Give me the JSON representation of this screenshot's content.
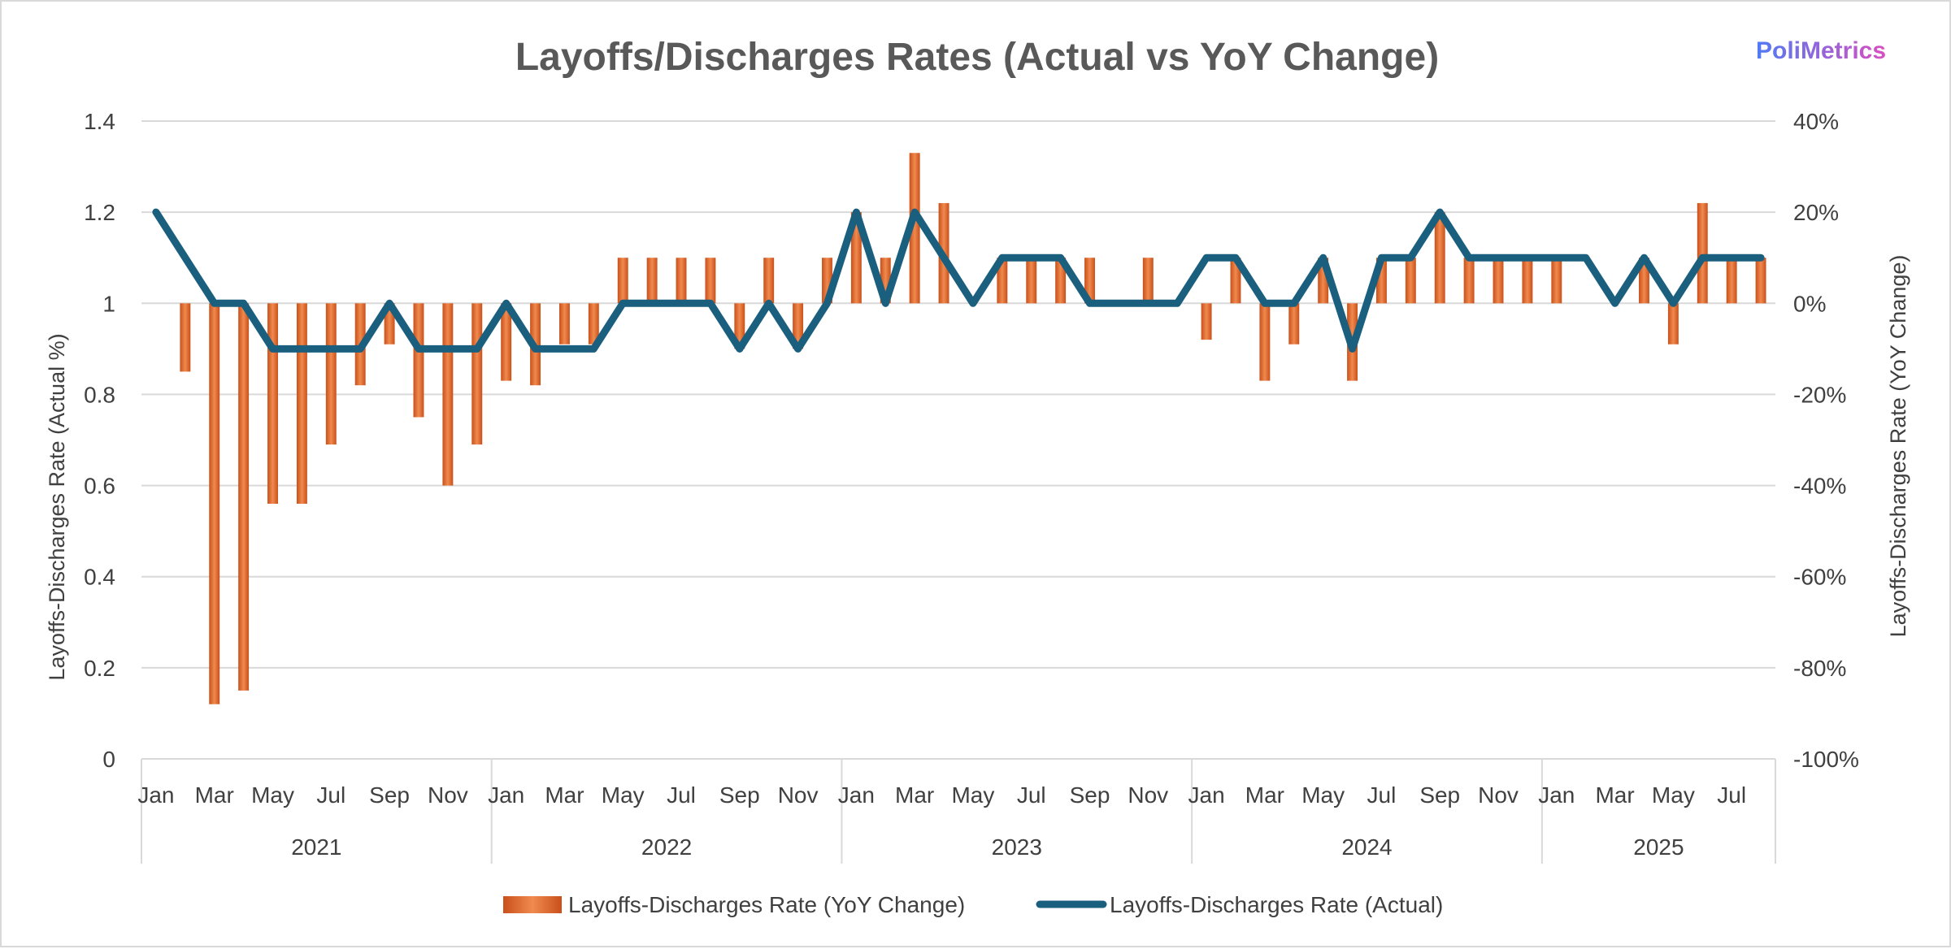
{
  "brand": {
    "label": "PoliMetrics",
    "color_start": "#4f7bf5",
    "color_end": "#d94fc2"
  },
  "chart_data": {
    "type": "bar+line",
    "title": "Layoffs/Discharges Rates (Actual vs YoY Change)",
    "y_left_label": "Layoffs-Discharges Rate (Actual %)",
    "y_right_label": "Layoffs-Discharges Rate (YoY Change)",
    "y_left_ticks": [
      "0",
      "0.2",
      "0.4",
      "0.6",
      "0.8",
      "1",
      "1.2",
      "1.4"
    ],
    "y_right_ticks": [
      "-100%",
      "-80%",
      "-60%",
      "-40%",
      "-20%",
      "0%",
      "20%",
      "40%"
    ],
    "ylim_left": [
      0,
      1.4
    ],
    "ylim_right": [
      -100,
      40
    ],
    "years": [
      "2021",
      "2022",
      "2023",
      "2024",
      "2025"
    ],
    "month_tick_labels": [
      [
        "Jan",
        "Mar",
        "May",
        "Jul",
        "Sep",
        "Nov"
      ],
      [
        "Jan",
        "Mar",
        "May",
        "Jul",
        "Sep",
        "Nov"
      ],
      [
        "Jan",
        "Mar",
        "May",
        "Jul",
        "Sep",
        "Nov"
      ],
      [
        "Jan",
        "Mar",
        "May",
        "Jul",
        "Sep",
        "Nov"
      ],
      [
        "Jan",
        "Mar",
        "May",
        "Jul"
      ]
    ],
    "series": [
      {
        "name": "Layoffs-Discharges Rate (YoY Change)",
        "type": "bar",
        "axis": "right",
        "color": "#ed7d31",
        "values": [
          0,
          -15,
          -88,
          -85,
          -44,
          -44,
          -31,
          -18,
          -9,
          -25,
          -40,
          -31,
          -17,
          -18,
          -9,
          -9,
          10,
          10,
          10,
          10,
          -10,
          10,
          -10,
          10,
          20,
          10,
          33,
          22,
          0,
          10,
          10,
          10,
          10,
          0,
          10,
          0,
          -8,
          10,
          -17,
          -9,
          10,
          -17,
          10,
          10,
          20,
          10,
          10,
          10,
          10,
          0,
          0,
          10,
          -9,
          22,
          10,
          10
        ]
      },
      {
        "name": "Layoffs-Discharges Rate (Actual)",
        "type": "line",
        "axis": "left",
        "color": "#1b5f7f",
        "values": [
          1.2,
          1.1,
          1.0,
          1.0,
          0.9,
          0.9,
          0.9,
          0.9,
          1.0,
          0.9,
          0.9,
          0.9,
          1.0,
          0.9,
          0.9,
          0.9,
          1.0,
          1.0,
          1.0,
          1.0,
          0.9,
          1.0,
          0.9,
          1.0,
          1.2,
          1.0,
          1.2,
          1.1,
          1.0,
          1.1,
          1.1,
          1.1,
          1.0,
          1.0,
          1.0,
          1.0,
          1.1,
          1.1,
          1.0,
          1.0,
          1.1,
          0.9,
          1.1,
          1.1,
          1.2,
          1.1,
          1.1,
          1.1,
          1.1,
          1.1,
          1.0,
          1.1,
          1.0,
          1.1,
          1.1,
          1.1
        ]
      }
    ],
    "legend": [
      "Layoffs-Discharges Rate (YoY Change)",
      "Layoffs-Discharges Rate (Actual)"
    ],
    "legend_position": "bottom",
    "grid": true
  }
}
